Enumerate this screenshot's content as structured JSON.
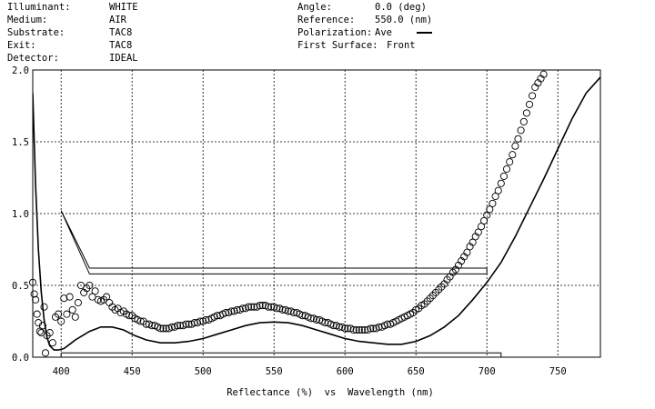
{
  "header": {
    "left": [
      {
        "label": "Illuminant:",
        "value": "WHITE"
      },
      {
        "label": "Medium:",
        "value": "AIR"
      },
      {
        "label": "Substrate:",
        "value": "TAC8"
      },
      {
        "label": "Exit:",
        "value": "TAC8"
      },
      {
        "label": "Detector:",
        "value": "IDEAL"
      }
    ],
    "right": [
      {
        "label": "Angle:",
        "value": "0.0 (deg)"
      },
      {
        "label": "Reference:",
        "value": "550.0 (nm)"
      },
      {
        "label": "Polarization:",
        "value": "Ave"
      },
      {
        "label": "First Surface:",
        "value": "Front"
      }
    ]
  },
  "chart_data": {
    "type": "line",
    "xlabel": "Reflectance (%)  vs  Wavelength (nm)",
    "xlim": [
      380,
      780
    ],
    "ylim": [
      0,
      2
    ],
    "x_ticks": [
      "400",
      "450",
      "500",
      "550",
      "600",
      "650",
      "700",
      "750"
    ],
    "y_ticks": [
      "0.0",
      "0.5",
      "1.0",
      "1.5",
      "2.0"
    ],
    "grid": true,
    "series": [
      {
        "style": "solid-line",
        "points": [
          [
            380,
            1.84
          ],
          [
            382,
            1.2
          ],
          [
            384,
            0.75
          ],
          [
            386,
            0.45
          ],
          [
            388,
            0.26
          ],
          [
            390,
            0.14
          ],
          [
            392,
            0.08
          ],
          [
            395,
            0.05
          ],
          [
            398,
            0.05
          ],
          [
            402,
            0.06
          ],
          [
            406,
            0.09
          ],
          [
            410,
            0.12
          ],
          [
            415,
            0.15
          ],
          [
            420,
            0.18
          ],
          [
            428,
            0.21
          ],
          [
            436,
            0.21
          ],
          [
            444,
            0.19
          ],
          [
            452,
            0.15
          ],
          [
            460,
            0.12
          ],
          [
            470,
            0.1
          ],
          [
            480,
            0.1
          ],
          [
            490,
            0.11
          ],
          [
            500,
            0.13
          ],
          [
            510,
            0.16
          ],
          [
            520,
            0.19
          ],
          [
            530,
            0.22
          ],
          [
            540,
            0.24
          ],
          [
            550,
            0.245
          ],
          [
            560,
            0.24
          ],
          [
            570,
            0.22
          ],
          [
            580,
            0.19
          ],
          [
            590,
            0.16
          ],
          [
            600,
            0.13
          ],
          [
            610,
            0.11
          ],
          [
            620,
            0.1
          ],
          [
            630,
            0.09
          ],
          [
            640,
            0.09
          ],
          [
            650,
            0.11
          ],
          [
            660,
            0.15
          ],
          [
            670,
            0.21
          ],
          [
            680,
            0.29
          ],
          [
            690,
            0.4
          ],
          [
            700,
            0.52
          ],
          [
            710,
            0.66
          ],
          [
            720,
            0.84
          ],
          [
            730,
            1.04
          ],
          [
            740,
            1.24
          ],
          [
            750,
            1.45
          ],
          [
            760,
            1.66
          ],
          [
            770,
            1.84
          ],
          [
            780,
            1.95
          ]
        ]
      },
      {
        "style": "circle-markers",
        "points": [
          [
            380,
            0.52
          ],
          [
            381,
            0.44
          ],
          [
            382,
            0.4
          ],
          [
            383,
            0.3
          ],
          [
            384,
            0.24
          ],
          [
            385,
            0.18
          ],
          [
            386,
            0.17
          ],
          [
            387,
            0.22
          ],
          [
            388,
            0.35
          ],
          [
            389,
            0.03
          ],
          [
            390,
            0.15
          ],
          [
            392,
            0.17
          ],
          [
            394,
            0.1
          ],
          [
            396,
            0.28
          ],
          [
            398,
            0.3
          ],
          [
            400,
            0.25
          ],
          [
            402,
            0.41
          ],
          [
            404,
            0.3
          ],
          [
            406,
            0.42
          ],
          [
            408,
            0.33
          ],
          [
            410,
            0.28
          ],
          [
            412,
            0.38
          ],
          [
            414,
            0.5
          ],
          [
            416,
            0.45
          ],
          [
            418,
            0.48
          ],
          [
            420,
            0.5
          ],
          [
            422,
            0.42
          ],
          [
            424,
            0.46
          ],
          [
            426,
            0.4
          ],
          [
            428,
            0.39
          ],
          [
            430,
            0.4
          ],
          [
            432,
            0.42
          ],
          [
            434,
            0.38
          ],
          [
            436,
            0.35
          ],
          [
            438,
            0.33
          ],
          [
            440,
            0.34
          ],
          [
            442,
            0.31
          ],
          [
            444,
            0.32
          ],
          [
            446,
            0.3
          ],
          [
            448,
            0.29
          ],
          [
            450,
            0.29
          ],
          [
            452,
            0.27
          ],
          [
            454,
            0.26
          ],
          [
            456,
            0.25
          ],
          [
            458,
            0.25
          ],
          [
            460,
            0.23
          ],
          [
            462,
            0.23
          ],
          [
            464,
            0.22
          ],
          [
            466,
            0.22
          ],
          [
            468,
            0.21
          ],
          [
            470,
            0.2
          ],
          [
            472,
            0.2
          ],
          [
            474,
            0.2
          ],
          [
            476,
            0.2
          ],
          [
            478,
            0.21
          ],
          [
            480,
            0.21
          ],
          [
            482,
            0.22
          ],
          [
            484,
            0.22
          ],
          [
            486,
            0.22
          ],
          [
            488,
            0.23
          ],
          [
            490,
            0.23
          ],
          [
            492,
            0.23
          ],
          [
            494,
            0.24
          ],
          [
            496,
            0.24
          ],
          [
            498,
            0.25
          ],
          [
            500,
            0.25
          ],
          [
            502,
            0.26
          ],
          [
            504,
            0.26
          ],
          [
            506,
            0.27
          ],
          [
            508,
            0.28
          ],
          [
            510,
            0.29
          ],
          [
            512,
            0.29
          ],
          [
            514,
            0.3
          ],
          [
            516,
            0.31
          ],
          [
            518,
            0.31
          ],
          [
            520,
            0.32
          ],
          [
            522,
            0.32
          ],
          [
            524,
            0.33
          ],
          [
            526,
            0.33
          ],
          [
            528,
            0.34
          ],
          [
            530,
            0.34
          ],
          [
            532,
            0.35
          ],
          [
            534,
            0.35
          ],
          [
            536,
            0.35
          ],
          [
            538,
            0.35
          ],
          [
            540,
            0.36
          ],
          [
            542,
            0.36
          ],
          [
            544,
            0.36
          ],
          [
            546,
            0.35
          ],
          [
            548,
            0.35
          ],
          [
            550,
            0.35
          ],
          [
            552,
            0.34
          ],
          [
            554,
            0.34
          ],
          [
            556,
            0.33
          ],
          [
            558,
            0.33
          ],
          [
            560,
            0.32
          ],
          [
            562,
            0.32
          ],
          [
            564,
            0.31
          ],
          [
            566,
            0.31
          ],
          [
            568,
            0.3
          ],
          [
            570,
            0.29
          ],
          [
            572,
            0.29
          ],
          [
            574,
            0.28
          ],
          [
            576,
            0.27
          ],
          [
            578,
            0.27
          ],
          [
            580,
            0.26
          ],
          [
            582,
            0.26
          ],
          [
            584,
            0.25
          ],
          [
            586,
            0.24
          ],
          [
            588,
            0.24
          ],
          [
            590,
            0.23
          ],
          [
            592,
            0.22
          ],
          [
            594,
            0.22
          ],
          [
            596,
            0.21
          ],
          [
            598,
            0.21
          ],
          [
            600,
            0.2
          ],
          [
            602,
            0.2
          ],
          [
            604,
            0.2
          ],
          [
            606,
            0.19
          ],
          [
            608,
            0.19
          ],
          [
            610,
            0.19
          ],
          [
            612,
            0.19
          ],
          [
            614,
            0.19
          ],
          [
            616,
            0.19
          ],
          [
            618,
            0.2
          ],
          [
            620,
            0.2
          ],
          [
            622,
            0.2
          ],
          [
            624,
            0.21
          ],
          [
            626,
            0.21
          ],
          [
            628,
            0.22
          ],
          [
            630,
            0.23
          ],
          [
            632,
            0.23
          ],
          [
            634,
            0.24
          ],
          [
            636,
            0.25
          ],
          [
            638,
            0.26
          ],
          [
            640,
            0.27
          ],
          [
            642,
            0.28
          ],
          [
            644,
            0.29
          ],
          [
            646,
            0.3
          ],
          [
            648,
            0.31
          ],
          [
            650,
            0.33
          ],
          [
            652,
            0.34
          ],
          [
            654,
            0.36
          ],
          [
            656,
            0.37
          ],
          [
            658,
            0.39
          ],
          [
            660,
            0.41
          ],
          [
            662,
            0.43
          ],
          [
            664,
            0.45
          ],
          [
            666,
            0.47
          ],
          [
            668,
            0.49
          ],
          [
            670,
            0.51
          ],
          [
            672,
            0.54
          ],
          [
            674,
            0.56
          ],
          [
            676,
            0.59
          ],
          [
            678,
            0.61
          ],
          [
            680,
            0.64
          ],
          [
            682,
            0.67
          ],
          [
            684,
            0.7
          ],
          [
            686,
            0.73
          ],
          [
            688,
            0.77
          ],
          [
            690,
            0.8
          ],
          [
            692,
            0.84
          ],
          [
            694,
            0.87
          ],
          [
            696,
            0.91
          ],
          [
            698,
            0.95
          ],
          [
            700,
            0.99
          ],
          [
            702,
            1.03
          ],
          [
            704,
            1.07
          ],
          [
            706,
            1.12
          ],
          [
            708,
            1.16
          ],
          [
            710,
            1.21
          ],
          [
            712,
            1.26
          ],
          [
            714,
            1.31
          ],
          [
            716,
            1.36
          ],
          [
            718,
            1.41
          ],
          [
            720,
            1.47
          ],
          [
            722,
            1.52
          ],
          [
            724,
            1.58
          ],
          [
            726,
            1.64
          ],
          [
            728,
            1.7
          ],
          [
            730,
            1.76
          ],
          [
            732,
            1.82
          ],
          [
            734,
            1.88
          ],
          [
            736,
            1.91
          ],
          [
            738,
            1.94
          ],
          [
            740,
            1.97
          ]
        ]
      },
      {
        "style": "target-outline",
        "points": [
          [
            400,
            1.02
          ],
          [
            420,
            0.62
          ],
          [
            700,
            0.62
          ],
          [
            700,
            0.58
          ],
          [
            420,
            0.58
          ],
          [
            400,
            1.02
          ]
        ]
      },
      {
        "style": "target-outline",
        "points": [
          [
            400,
            0.03
          ],
          [
            710,
            0.03
          ],
          [
            710,
            0.0
          ],
          [
            400,
            0.0
          ],
          [
            400,
            0.03
          ]
        ]
      }
    ]
  }
}
